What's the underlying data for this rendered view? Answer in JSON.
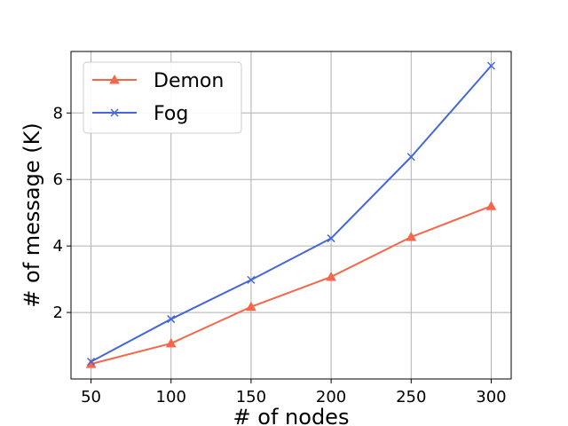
{
  "chart_data": {
    "type": "line",
    "title": "",
    "xlabel": "# of nodes",
    "ylabel": "# of message (K)",
    "x": [
      50,
      100,
      150,
      200,
      250,
      300
    ],
    "xticks": [
      "50",
      "100",
      "150",
      "200",
      "250",
      "300"
    ],
    "yticks": [
      "2",
      "4",
      "6",
      "8"
    ],
    "ytick_values": [
      2,
      4,
      6,
      8
    ],
    "xlim": [
      37.5,
      312.5
    ],
    "ylim": [
      -0.0,
      9.85
    ],
    "grid": true,
    "legend_position": "upper-left",
    "series": [
      {
        "name": "Demon",
        "marker": "triangle",
        "color": "#f4674a",
        "values": [
          0.45,
          1.07,
          2.17,
          3.07,
          4.27,
          5.2
        ]
      },
      {
        "name": "Fog",
        "marker": "x",
        "color": "#4466d8",
        "values": [
          0.52,
          1.8,
          2.98,
          4.23,
          6.68,
          9.42
        ]
      }
    ]
  }
}
